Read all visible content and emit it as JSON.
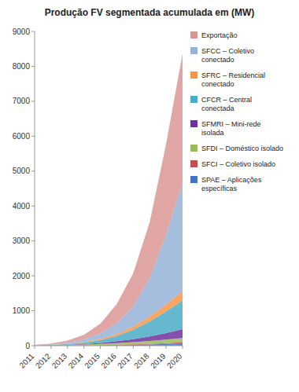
{
  "chart_data": {
    "type": "area",
    "stacked": true,
    "title": "Produção FV segmentada acumulada em (MW)",
    "x": [
      2011,
      2012,
      2013,
      2014,
      2015,
      2016,
      2017,
      2018,
      2019,
      2020
    ],
    "xlim": [
      2011,
      2020
    ],
    "xticks": [
      2011,
      2012,
      2013,
      2014,
      2015,
      2016,
      2017,
      2018,
      2019,
      2020
    ],
    "ylim": [
      0,
      9000
    ],
    "yticks": [
      0,
      1000,
      2000,
      3000,
      4000,
      5000,
      6000,
      7000,
      8000,
      9000
    ],
    "grid": false,
    "legend": "right",
    "series": [
      {
        "name": "SPAE – Aplicações\nespecíficas",
        "color": "#4472c4",
        "values": [
          2,
          3,
          5,
          8,
          12,
          18,
          25,
          35,
          50,
          70
        ]
      },
      {
        "name": "SFCI – Coletivo isolado",
        "color": "#c0504d",
        "values": [
          1,
          2,
          3,
          5,
          7,
          10,
          14,
          18,
          23,
          30
        ]
      },
      {
        "name": "SFDI – Doméstico isolado",
        "color": "#9bbb59",
        "values": [
          3,
          6,
          10,
          18,
          30,
          45,
          60,
          80,
          100,
          120
        ]
      },
      {
        "name": "SFMRI – Mini-rede\nisolada",
        "color": "#7030a0",
        "values": [
          2,
          4,
          8,
          15,
          30,
          55,
          85,
          130,
          185,
          250
        ]
      },
      {
        "name": "CFCR – Central\nconectada",
        "color": "#4bacc6",
        "values": [
          3,
          8,
          18,
          40,
          80,
          150,
          270,
          430,
          620,
          830
        ]
      },
      {
        "name": "SFRC – Residencial\nconectado",
        "color": "#f79646",
        "values": [
          1,
          3,
          7,
          15,
          30,
          55,
          90,
          140,
          200,
          270
        ]
      },
      {
        "name": "SFCC – Coletivo\nconectado",
        "color": "#95b3d7",
        "values": [
          5,
          15,
          35,
          80,
          160,
          310,
          580,
          1100,
          2000,
          3100
        ]
      },
      {
        "name": "Exportação",
        "color": "#d99694",
        "values": [
          5,
          20,
          60,
          130,
          280,
          550,
          950,
          1600,
          2600,
          3700
        ]
      }
    ]
  }
}
